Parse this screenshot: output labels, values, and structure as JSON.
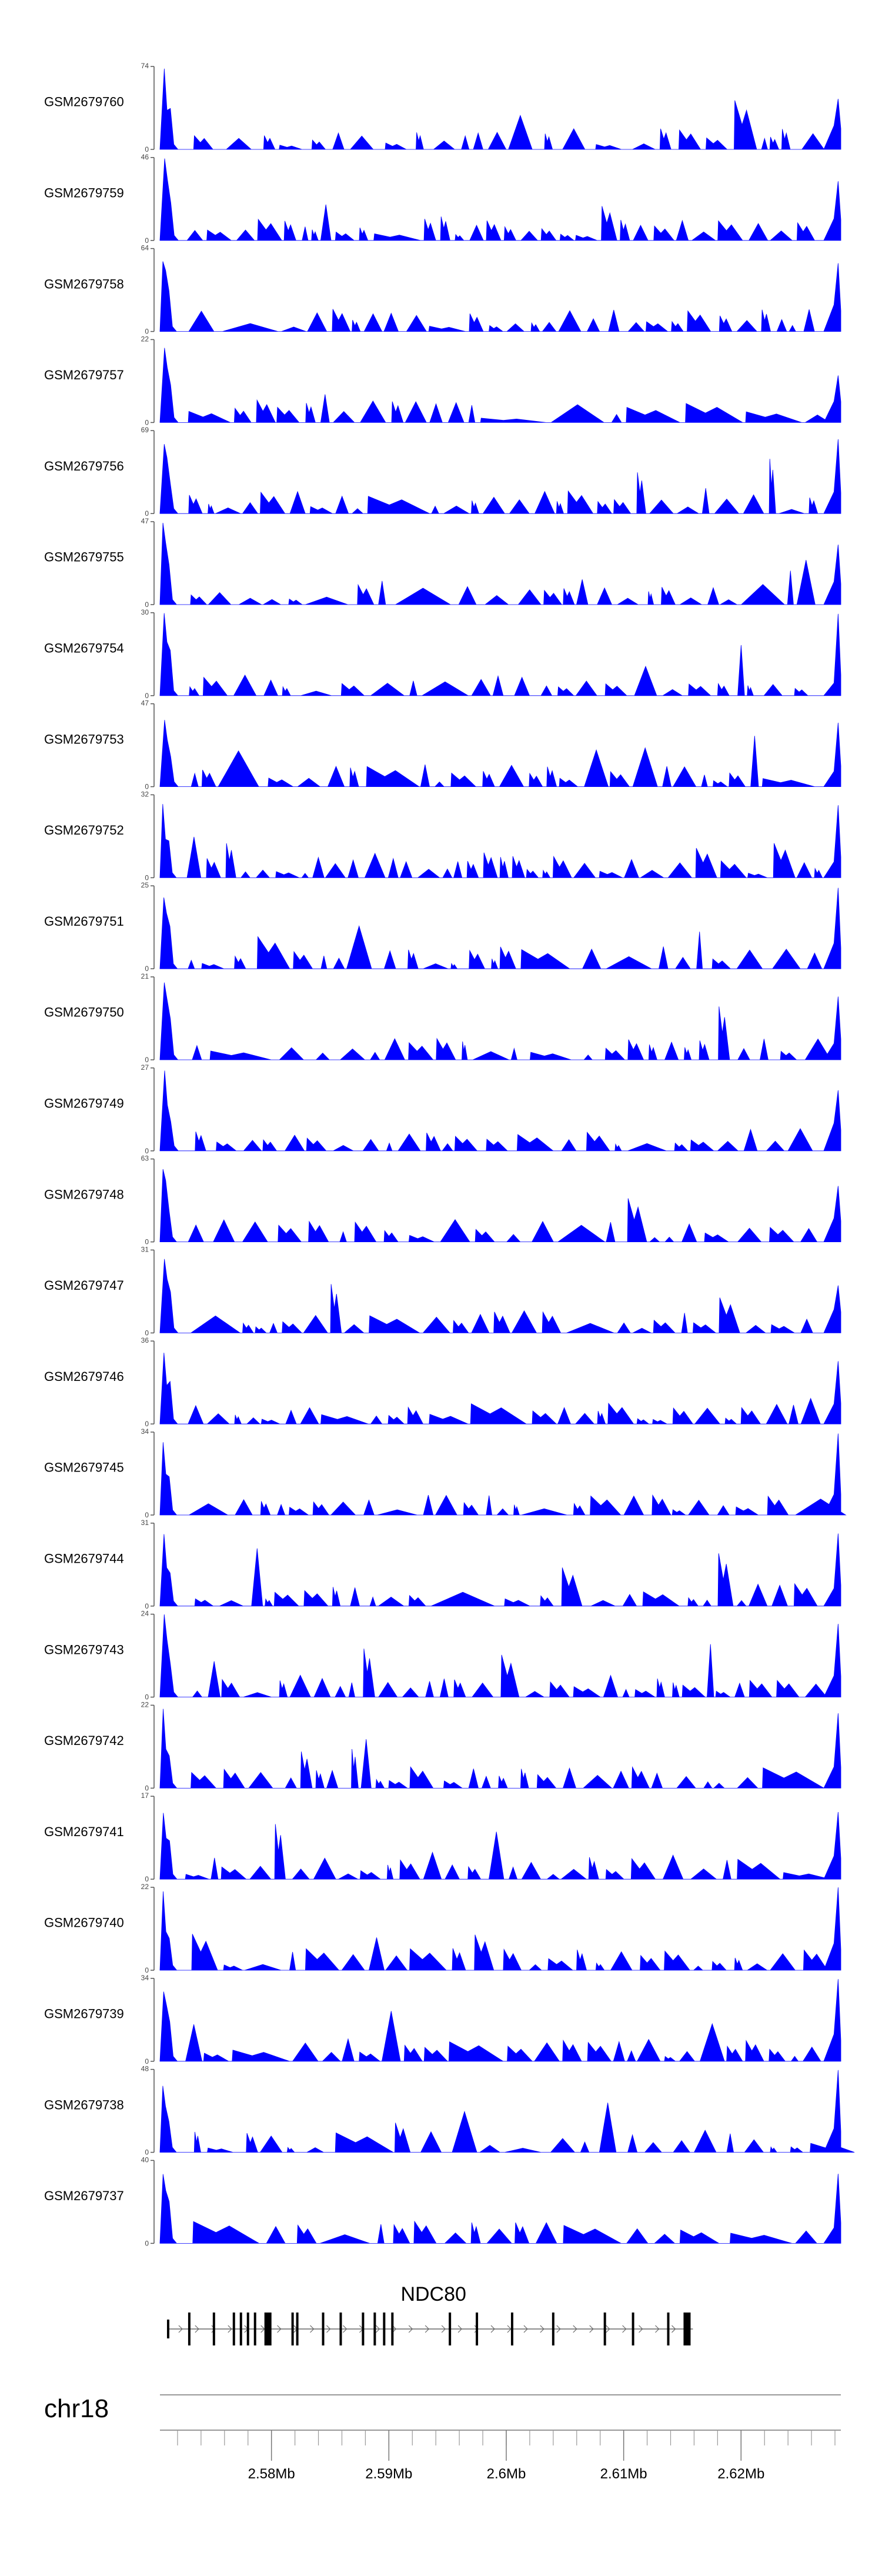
{
  "chart_data": {
    "type": "area",
    "series_color": "#0000ff",
    "axis_color": "#555555",
    "tracks": [
      {
        "name": "GSM2679760",
        "ymax": 74
      },
      {
        "name": "GSM2679759",
        "ymax": 46
      },
      {
        "name": "GSM2679758",
        "ymax": 64
      },
      {
        "name": "GSM2679757",
        "ymax": 22
      },
      {
        "name": "GSM2679756",
        "ymax": 69
      },
      {
        "name": "GSM2679755",
        "ymax": 47
      },
      {
        "name": "GSM2679754",
        "ymax": 30
      },
      {
        "name": "GSM2679753",
        "ymax": 47
      },
      {
        "name": "GSM2679752",
        "ymax": 32
      },
      {
        "name": "GSM2679751",
        "ymax": 25
      },
      {
        "name": "GSM2679750",
        "ymax": 21
      },
      {
        "name": "GSM2679749",
        "ymax": 27
      },
      {
        "name": "GSM2679748",
        "ymax": 63
      },
      {
        "name": "GSM2679747",
        "ymax": 31
      },
      {
        "name": "GSM2679746",
        "ymax": 36
      },
      {
        "name": "GSM2679745",
        "ymax": 34
      },
      {
        "name": "GSM2679744",
        "ymax": 31
      },
      {
        "name": "GSM2679743",
        "ymax": 24
      },
      {
        "name": "GSM2679742",
        "ymax": 22
      },
      {
        "name": "GSM2679741",
        "ymax": 17
      },
      {
        "name": "GSM2679740",
        "ymax": 22
      },
      {
        "name": "GSM2679739",
        "ymax": 34
      },
      {
        "name": "GSM2679738",
        "ymax": 48
      },
      {
        "name": "GSM2679737",
        "ymax": 40
      }
    ],
    "ymin_label": "0",
    "x_range_mb": [
      2.5705,
      2.6285
    ],
    "gene": {
      "name": "NDC80",
      "start_mb": 2.5712,
      "end_mb": 2.6159,
      "exons_mb": [
        2.573,
        2.5751,
        2.5768,
        2.5774,
        2.578,
        2.5786,
        2.5797,
        2.5818,
        2.5822,
        2.5844,
        2.5859,
        2.5878,
        2.5888,
        2.5896,
        2.5903,
        2.5952,
        2.5975,
        2.6005,
        2.604,
        2.6084,
        2.6108,
        2.6138,
        2.6154
      ]
    },
    "chromosome": "chr18",
    "x_ticks": [
      {
        "value": 2.58,
        "label": "2.58Mb"
      },
      {
        "value": 2.59,
        "label": "2.59Mb"
      },
      {
        "value": 2.6,
        "label": "2.6Mb"
      },
      {
        "value": 2.61,
        "label": "2.61Mb"
      },
      {
        "value": 2.62,
        "label": "2.62Mb"
      }
    ],
    "minor_tick_step_mb": 0.002
  }
}
